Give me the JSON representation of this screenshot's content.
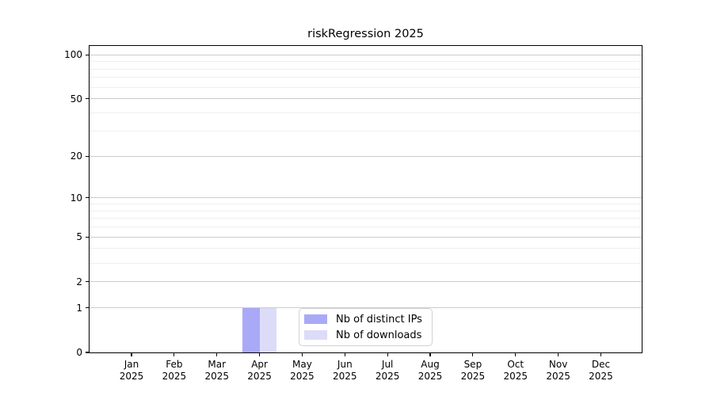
{
  "chart_data": {
    "type": "bar",
    "title": "riskRegression 2025",
    "categories": [
      "Jan 2025",
      "Feb 2025",
      "Mar 2025",
      "Apr 2025",
      "May 2025",
      "Jun 2025",
      "Jul 2025",
      "Aug 2025",
      "Sep 2025",
      "Oct 2025",
      "Nov 2025",
      "Dec 2025"
    ],
    "series": [
      {
        "name": "Nb of distinct IPs",
        "color": "#a9a9f8",
        "values": [
          0,
          0,
          0,
          1,
          0,
          0,
          0,
          0,
          0,
          0,
          0,
          0
        ]
      },
      {
        "name": "Nb of downloads",
        "color": "#dcdcf8",
        "values": [
          0,
          0,
          0,
          1,
          0,
          0,
          0,
          0,
          0,
          0,
          0,
          0
        ]
      }
    ],
    "xlabel": "",
    "ylabel": "",
    "yscale": "log10(1+v)",
    "ylim": [
      0,
      115
    ],
    "y_major_ticks": [
      0,
      1,
      2,
      5,
      10,
      20,
      50,
      100
    ],
    "y_minor_gridlines": [
      3,
      4,
      6,
      7,
      8,
      9,
      30,
      40,
      60,
      70,
      80,
      90
    ],
    "grid": "horizontal",
    "legend_position": "inside-bottom-center"
  },
  "legend": {
    "items": [
      {
        "label": "Nb of distinct IPs",
        "color": "#a9a9f8"
      },
      {
        "label": "Nb of downloads",
        "color": "#dcdcf8"
      }
    ]
  },
  "colors": {
    "bar_distinct_ips": "#a9a9f8",
    "bar_downloads": "#dcdcf8",
    "major_grid": "#cccccc",
    "minor_grid": "#efefef",
    "spine": "#000000",
    "background": "#ffffff",
    "text": "#000000",
    "legend_border": "#d2d2d2"
  }
}
